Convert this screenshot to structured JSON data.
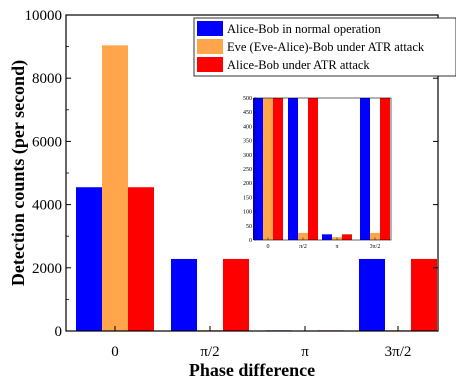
{
  "chart_data": {
    "type": "bar",
    "xlabel": "Phase difference",
    "ylabel": "Detection counts (per second)",
    "categories": [
      "0",
      "π/2",
      "π",
      "3π/2"
    ],
    "ylim": [
      0,
      10000
    ],
    "yticks": [
      0,
      2000,
      4000,
      6000,
      8000,
      10000
    ],
    "legend_position": "top-right",
    "series": [
      {
        "name": "Alice-Bob in normal operation",
        "color": "#0000ff",
        "values": [
          4550,
          2280,
          20,
          2280
        ]
      },
      {
        "name": "Eve (Eve-Alice)-Bob under ATR attack",
        "color": "#ffa64d",
        "values": [
          9040,
          25,
          10,
          25
        ]
      },
      {
        "name": "Alice-Bob under ATR attack",
        "color": "#ff0000",
        "values": [
          4550,
          2280,
          20,
          2280
        ]
      }
    ],
    "inset": {
      "ylim": [
        0,
        500
      ],
      "yticks": [
        0,
        50,
        100,
        150,
        200,
        250,
        300,
        350,
        400,
        450,
        500
      ],
      "categories": [
        "0",
        "π/2",
        "π",
        "3π/2"
      ]
    }
  }
}
